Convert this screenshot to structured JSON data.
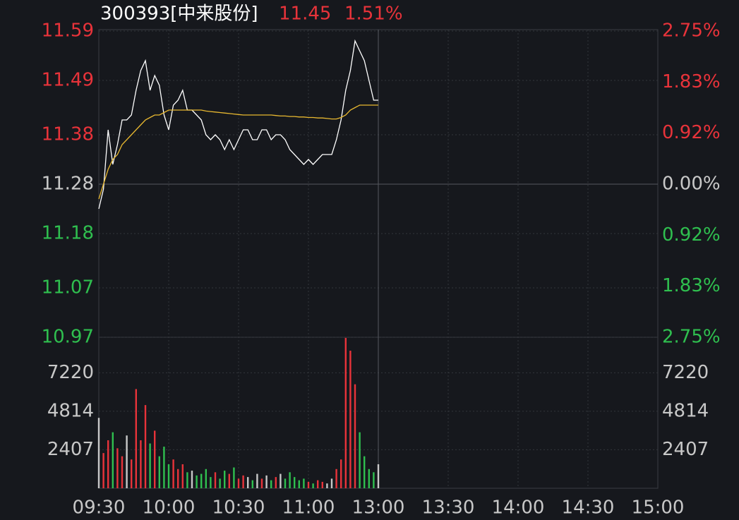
{
  "chart_data": {
    "type": "intraday",
    "title": "300393[中来股份]",
    "last_price": 11.45,
    "change": {
      "value": 1.51,
      "label": "1.51%"
    },
    "x": [
      0,
      2,
      4,
      6,
      8,
      10,
      12,
      14,
      16,
      18,
      20,
      22,
      24,
      26,
      28,
      30,
      32,
      34,
      36,
      38,
      40,
      42,
      44,
      46,
      48,
      50,
      52,
      54,
      56,
      58,
      60,
      62,
      64,
      66,
      68,
      70,
      72,
      74,
      76,
      78,
      80,
      82,
      84,
      86,
      88,
      90,
      92,
      94,
      96,
      98,
      100,
      102,
      104,
      106,
      108,
      110,
      112,
      114,
      116,
      118,
      120
    ],
    "xlim": [
      0,
      240
    ],
    "xticks": [
      {
        "value": 0,
        "label": "09:30"
      },
      {
        "value": 30,
        "label": "10:00"
      },
      {
        "value": 60,
        "label": "10:30"
      },
      {
        "value": 90,
        "label": "11:00"
      },
      {
        "value": 120,
        "label": "13:00"
      },
      {
        "value": 150,
        "label": "13:30"
      },
      {
        "value": 180,
        "label": "14:00"
      },
      {
        "value": 210,
        "label": "14:30"
      },
      {
        "value": 240,
        "label": "15:00"
      }
    ],
    "series": [
      {
        "name": "price",
        "color": "#ffffff",
        "values": [
          11.23,
          11.27,
          11.39,
          11.32,
          11.36,
          11.41,
          11.41,
          11.42,
          11.47,
          11.51,
          11.53,
          11.47,
          11.5,
          11.48,
          11.42,
          11.39,
          11.44,
          11.45,
          11.47,
          11.43,
          11.43,
          11.42,
          11.41,
          11.38,
          11.37,
          11.38,
          11.37,
          11.35,
          11.37,
          11.35,
          11.37,
          11.39,
          11.39,
          11.37,
          11.37,
          11.39,
          11.39,
          11.37,
          11.38,
          11.38,
          11.37,
          11.35,
          11.34,
          11.33,
          11.32,
          11.33,
          11.32,
          11.33,
          11.34,
          11.34,
          11.34,
          11.37,
          11.41,
          11.47,
          11.51,
          11.57,
          11.55,
          11.53,
          11.49,
          11.45,
          11.45
        ]
      },
      {
        "name": "average",
        "color": "#e8b830",
        "values": [
          11.25,
          11.28,
          11.31,
          11.33,
          11.34,
          11.36,
          11.37,
          11.38,
          11.39,
          11.4,
          11.41,
          11.415,
          11.42,
          11.42,
          11.425,
          11.43,
          11.43,
          11.43,
          11.43,
          11.43,
          11.43,
          11.43,
          11.43,
          11.428,
          11.427,
          11.426,
          11.425,
          11.424,
          11.423,
          11.422,
          11.421,
          11.42,
          11.42,
          11.42,
          11.42,
          11.42,
          11.42,
          11.42,
          11.419,
          11.418,
          11.418,
          11.417,
          11.417,
          11.416,
          11.416,
          11.415,
          11.415,
          11.414,
          11.414,
          11.413,
          11.412,
          11.412,
          11.415,
          11.42,
          11.43,
          11.435,
          11.44,
          11.44,
          11.44,
          11.44,
          11.44
        ]
      }
    ],
    "ylim": [
      10.97,
      11.59
    ],
    "yticks": [
      11.59,
      11.49,
      11.38,
      11.28,
      11.18,
      11.07,
      10.97
    ],
    "y2lim": [
      -2.75,
      2.75
    ],
    "y2ticks": [
      {
        "value": 2.75,
        "label": "2.75%"
      },
      {
        "value": 1.83,
        "label": "1.83%"
      },
      {
        "value": 0.92,
        "label": "0.92%"
      },
      {
        "value": 0,
        "label": "0.00%"
      },
      {
        "value": -0.92,
        "label": "0.92%"
      },
      {
        "value": -1.83,
        "label": "1.83%"
      },
      {
        "value": -2.75,
        "label": "2.75%"
      }
    ],
    "volume": {
      "values": [
        4400,
        2200,
        3000,
        3500,
        2500,
        2000,
        3300,
        1800,
        6200,
        3000,
        5200,
        2800,
        3600,
        2000,
        2600,
        1500,
        1800,
        1200,
        1500,
        1000,
        1100,
        800,
        900,
        1200,
        700,
        1000,
        600,
        1100,
        900,
        1300,
        600,
        800,
        700,
        500,
        900,
        600,
        800,
        500,
        700,
        900,
        600,
        1000,
        700,
        500,
        600,
        400,
        300,
        500,
        400,
        300,
        600,
        1200,
        1800,
        9400,
        8600,
        6500,
        3500,
        2000,
        1200,
        1000,
        1500
      ],
      "ylim": [
        0,
        9440
      ],
      "yticks": [
        2407,
        4814,
        7220
      ]
    },
    "up_color": "#e8333a",
    "down_color": "#2fbf4f",
    "flat_color": "#c8c8c8"
  }
}
